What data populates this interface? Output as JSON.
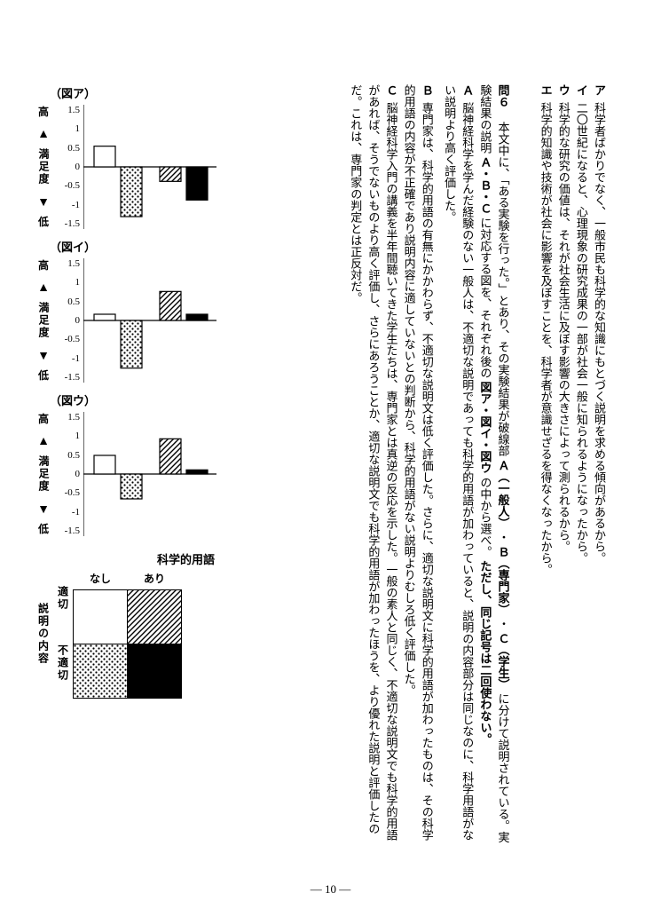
{
  "pageNumber": "― 10 ―",
  "choicesTop": {
    "a": "科学者ばかりでなく、一般市民も科学的な知識にもとづく説明を求める傾向があるから。",
    "i": "二〇世紀になると、心理現象の研究成果の一部が社会一般に知られるようになったから。",
    "u": "科学的な研究の価値は、それが社会生活に及ぼす影響の大きさによって測られるから。",
    "e": "科学的知識や技術が社会に影響を及ぼすことを、科学者が意識せざるを得なくなったから。"
  },
  "q6": {
    "label": "問６",
    "para1_a": "本文中に、「ある実験を行った。」とあり、その実験結果が破線部",
    "labelA": "Ａ（一般人）",
    "dot": "・",
    "labelB": "Ｂ（専門家）",
    "labelC": "Ｃ（学生）",
    "para1_b": "に分けて説明されている。実験結果の説明",
    "para1_c": "Ａ・Ｂ・Ｃ",
    "para1_d": "に対応する図を、それぞれ後の",
    "para1_e": "図ア・図イ・図ウ",
    "para1_f": "の中から選べ。",
    "para1_g": "ただし、同じ記号は二回使わない。",
    "sup4": "⑷"
  },
  "items": {
    "A": "脳神経科学を学んだ経験のない一般人は、不適切な説明であっても科学的用語が加わっていると、説明の内容部分は同じなのに、科学用語がない説明より高く評価した。",
    "B": "専門家は、科学的用語の有無にかかわらず、不適切な説明文は低く評価した。さらに、適切な説明文に科学的用語が加わったものは、その科学的用語の内容が不正確であり説明内容に適していないとの判断から、科学的用語がない説明よりむしろ低く評価した。",
    "C": "脳神経科学入門の講義を半年間聴いてきた学生たちは、専門家とは真逆の反応を示した。一般の素人と同じく、不適切な説明文でも科学的用語があれば、そうでないものより高く評価し、さらにあろうことか、適切な説明文でも科学的用語が加わったほうを、より優れた説明と評価したのだ。これは、専門家の判定とは正反対だ。"
  },
  "charts": {
    "yticks": [
      1.5,
      1,
      0.5,
      0,
      -0.5,
      -1,
      -1.5
    ],
    "ylim": [
      -1.5,
      1.5
    ],
    "axis_name": "満足度",
    "hl_high": "高",
    "hl_low": "低",
    "list": [
      {
        "title": "（図ア）",
        "values": [
          0.5,
          -1.2,
          -0.35,
          -0.8
        ],
        "patterns": [
          "white",
          "dots",
          "hatch",
          "black"
        ]
      },
      {
        "title": "（図イ）",
        "values": [
          0.15,
          -1.15,
          0.7,
          0.15
        ],
        "patterns": [
          "white",
          "dots",
          "hatch",
          "black"
        ]
      },
      {
        "title": "（図ウ）",
        "values": [
          0.45,
          -0.6,
          0.85,
          0.1
        ],
        "patterns": [
          "white",
          "dots",
          "hatch",
          "black"
        ]
      }
    ]
  },
  "legend": {
    "title": "科学的用語",
    "cols": {
      "none": "なし",
      "yes": "あり"
    },
    "rowsLabel": "説明の内容",
    "rows": {
      "good": "適切",
      "bad": "不適切"
    },
    "cells": [
      [
        "white",
        "hatch"
      ],
      [
        "dots",
        "black"
      ]
    ]
  }
}
